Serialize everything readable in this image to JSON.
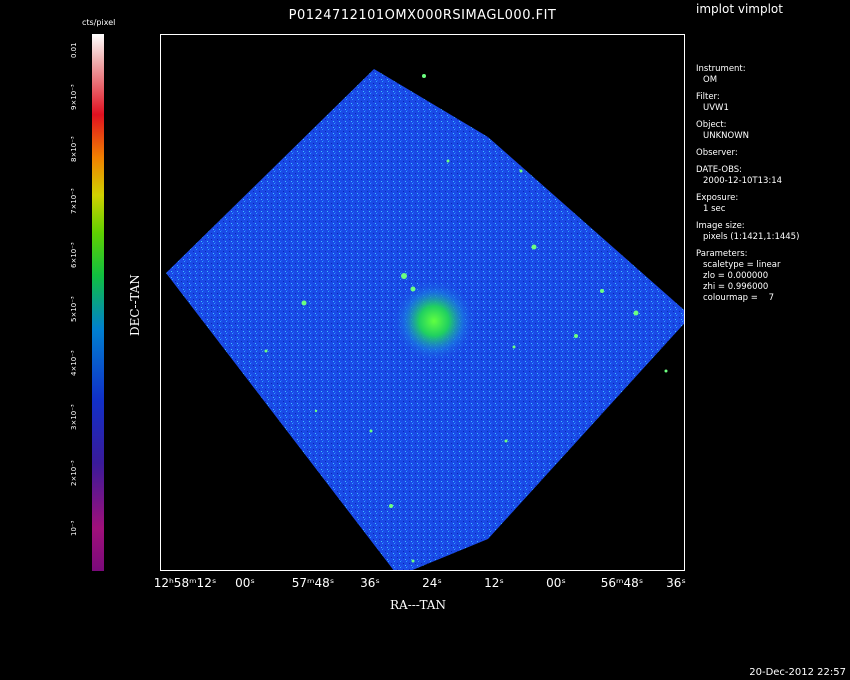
{
  "title": "P0124712101OMX000RSIMAGL000.FIT",
  "program": "implot vimplot",
  "colorbar": {
    "title": "cts/pixel",
    "labels": [
      "0.01",
      "9×10⁻³",
      "8×10⁻³",
      "7×10⁻³",
      "6×10⁻³",
      "5×10⁻³",
      "4×10⁻³",
      "3×10⁻³",
      "2×10⁻³",
      "10⁻³"
    ]
  },
  "info": [
    {
      "key": "Instrument:",
      "value": "OM"
    },
    {
      "key": "Filter:",
      "value": "UVW1"
    },
    {
      "key": "Object:",
      "value": "UNKNOWN"
    },
    {
      "key": "Observer:",
      "value": ""
    },
    {
      "key": "DATE-OBS:",
      "value": "2000-12-10T13:14"
    },
    {
      "key": "Exposure:",
      "value": "1 sec"
    },
    {
      "key": "Image size:",
      "value": "pixels (1:1421,1:1445)"
    },
    {
      "key": "Parameters:",
      "value": "scaletype = linear\nzlo = 0.000000\nzhi = 0.996000\ncolourmap =    7"
    }
  ],
  "x_ticks": [
    "12ʰ58ᵐ12ˢ",
    "00ˢ",
    "57ᵐ48ˢ",
    "36ˢ",
    "24ˢ",
    "12ˢ",
    "00ˢ",
    "56ᵐ48ˢ",
    "36ˢ"
  ],
  "xlabel": "RA---TAN",
  "ylabel": "DEC--TAN",
  "footer": "20-Dec-2012 22:57"
}
